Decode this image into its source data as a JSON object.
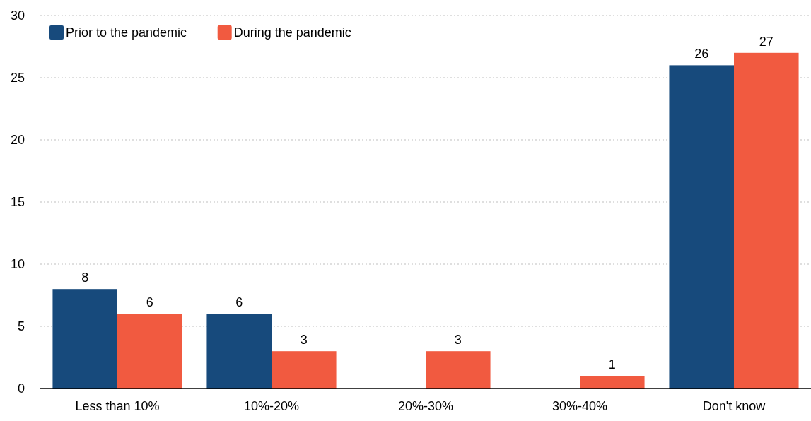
{
  "chart_data": {
    "type": "bar",
    "categories": [
      "Less than 10%",
      "10%-20%",
      "20%-30%",
      "30%-40%",
      "Don't know"
    ],
    "series": [
      {
        "name": "Prior to the pandemic",
        "color": "#174a7c",
        "values": [
          8,
          6,
          null,
          null,
          26
        ]
      },
      {
        "name": "During the pandemic",
        "color": "#f15a40",
        "values": [
          6,
          3,
          3,
          1,
          27
        ]
      }
    ],
    "ylim": [
      0,
      30
    ],
    "yticks": [
      0,
      5,
      10,
      15,
      20,
      25,
      30
    ],
    "grid": "y",
    "legend": "top left",
    "data_labels": true
  }
}
